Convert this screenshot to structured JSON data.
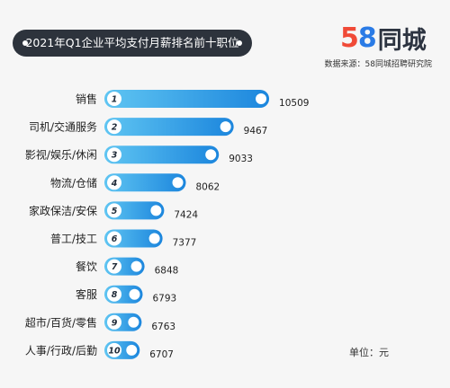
{
  "title": "2021年Q1企业平均支付月薪排名前十职位",
  "logo": {
    "digits": [
      "5",
      "8"
    ],
    "text": "同城"
  },
  "source": "数据来源：58同城招聘研究院",
  "unit": "单位：元",
  "colors": {
    "bar_start": "#5fc5f2",
    "bar_end": "#1c86dd",
    "pill": "#2d333c",
    "text": "#222222"
  },
  "chart_data": {
    "type": "bar",
    "orientation": "horizontal",
    "categories": [
      "销售",
      "司机/交通服务",
      "影视/娱乐/休闲",
      "物流/仓储",
      "家政保洁/安保",
      "普工/技工",
      "餐饮",
      "客服",
      "超市/百货/零售",
      "人事/行政/后勤"
    ],
    "ranks": [
      "1",
      "2",
      "3",
      "4",
      "5",
      "6",
      "7",
      "8",
      "9",
      "10"
    ],
    "values": [
      10509,
      9467,
      9033,
      8062,
      7424,
      7377,
      6848,
      6793,
      6763,
      6707
    ],
    "value_labels": [
      "10509",
      "9467",
      "9033",
      "8062",
      "7424",
      "7377",
      "6848",
      "6793",
      "6763",
      "6707"
    ],
    "title": "2021年Q1企业平均支付月薪排名前十职位",
    "xlabel": "",
    "ylabel": "",
    "grid": false,
    "legend": "none"
  }
}
